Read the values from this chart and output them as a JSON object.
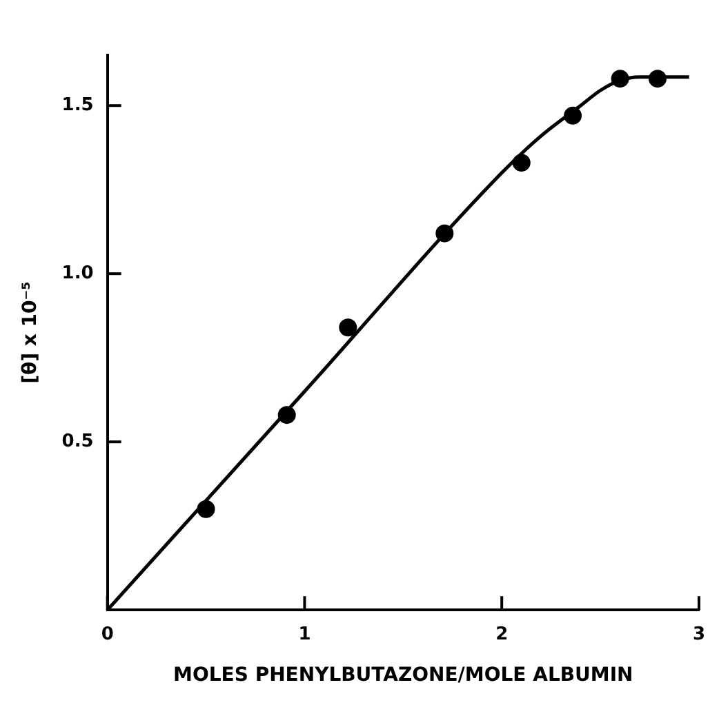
{
  "chart_data": {
    "type": "scatter",
    "xlabel": "MOLES PHENYLBUTAZONE/MOLE ALBUMIN",
    "ylabel": "[θ] x 10⁻⁵",
    "xlim": [
      0,
      3
    ],
    "ylim": [
      0,
      1.65
    ],
    "xticks": [
      0,
      1,
      2,
      3
    ],
    "yticks": [
      {
        "value": 0.5,
        "label": "0.5"
      },
      {
        "value": 1,
        "label": "1.0"
      },
      {
        "value": 1.5,
        "label": "1.5"
      }
    ],
    "grid": false,
    "legend": false,
    "marker": "circle",
    "series": [
      {
        "type": "scatter",
        "color": "#000000",
        "x": [
          0.5,
          0.91,
          1.22,
          1.71,
          2.1,
          2.36,
          2.6,
          2.79
        ],
        "values": [
          0.3,
          0.58,
          0.84,
          1.12,
          1.33,
          1.47,
          1.58,
          1.58
        ]
      },
      {
        "type": "line",
        "color": "#000000",
        "marker": "none",
        "x": [
          0,
          1,
          2,
          2.2,
          2.4,
          2.5,
          2.6,
          2.7,
          2.8,
          2.95
        ],
        "values": [
          0,
          0.65,
          1.3,
          1.41,
          1.5,
          1.545,
          1.575,
          1.585,
          1.585,
          1.585
        ]
      }
    ]
  }
}
